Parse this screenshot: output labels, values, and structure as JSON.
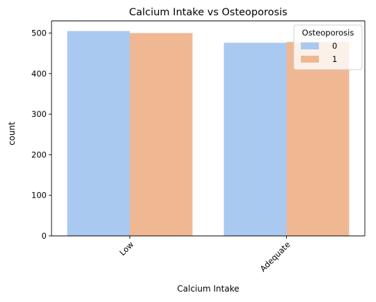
{
  "chart_data": {
    "type": "bar",
    "title": "Calcium Intake vs Osteoporosis",
    "xlabel": "Calcium Intake",
    "ylabel": "count",
    "categories": [
      "Low",
      "Adequate"
    ],
    "series": [
      {
        "name": "0",
        "values": [
          505,
          476
        ],
        "color": "#aac9f0"
      },
      {
        "name": "1",
        "values": [
          500,
          478
        ],
        "color": "#f0b892"
      }
    ],
    "ylim": [
      0,
      530
    ],
    "yticks": [
      0,
      100,
      200,
      300,
      400,
      500
    ],
    "legend": {
      "title": "Osteoporosis",
      "placement": "top-right"
    },
    "grid": false
  }
}
